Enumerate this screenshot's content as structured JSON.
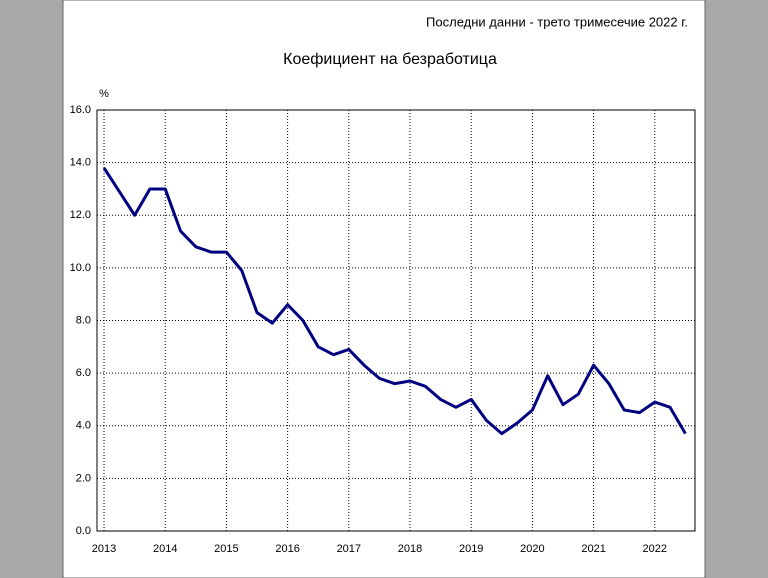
{
  "chart_data": {
    "type": "line",
    "note": "Последни данни - трето тримесечие 2022 г.",
    "title": "Коефициент на безработица",
    "y_unit": "%",
    "x": [
      2013,
      2013.25,
      2013.5,
      2013.75,
      2014,
      2014.25,
      2014.5,
      2014.75,
      2015,
      2015.25,
      2015.5,
      2015.75,
      2016,
      2016.25,
      2016.5,
      2016.75,
      2017,
      2017.25,
      2017.5,
      2017.75,
      2018,
      2018.25,
      2018.5,
      2018.75,
      2019,
      2019.25,
      2019.5,
      2019.75,
      2020,
      2020.25,
      2020.5,
      2020.75,
      2021,
      2021.25,
      2021.5,
      2021.75,
      2022,
      2022.25,
      2022.5
    ],
    "series": [
      {
        "color": "#000080",
        "values": [
          13.8,
          12.9,
          12.0,
          13.0,
          13.0,
          11.4,
          10.8,
          10.6,
          10.6,
          9.9,
          8.3,
          7.9,
          8.6,
          8.0,
          7.0,
          6.7,
          6.9,
          6.3,
          5.8,
          5.6,
          5.7,
          5.5,
          5.0,
          4.7,
          5.0,
          4.2,
          3.7,
          4.1,
          4.6,
          5.9,
          4.8,
          5.2,
          6.3,
          5.6,
          4.6,
          4.5,
          4.9,
          4.7,
          3.7
        ]
      }
    ],
    "xlim": [
      2012.885,
      2022.657
    ],
    "xticks": [
      2013,
      2014,
      2015,
      2016,
      2017,
      2018,
      2019,
      2020,
      2021,
      2022
    ],
    "ylim": [
      0,
      16
    ],
    "yticks": [
      {
        "value": 0,
        "label": "0.0"
      },
      {
        "value": 2,
        "label": "2.0"
      },
      {
        "value": 4,
        "label": "4.0"
      },
      {
        "value": 6,
        "label": "6.0"
      },
      {
        "value": 8,
        "label": "8.0"
      },
      {
        "value": 10,
        "label": "10.0"
      },
      {
        "value": 12,
        "label": "12.0"
      },
      {
        "value": 14,
        "label": "14.0"
      },
      {
        "value": 16,
        "label": "16.0"
      }
    ],
    "grid": true
  }
}
